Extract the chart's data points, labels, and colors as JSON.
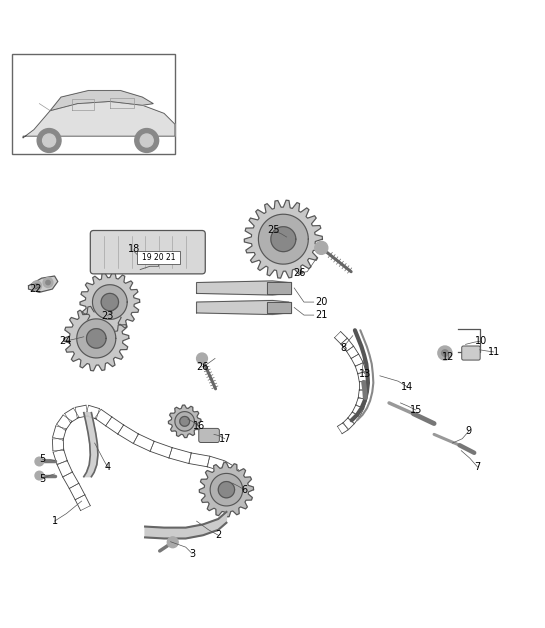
{
  "title": "",
  "bg_color": "#ffffff",
  "fig_width": 5.45,
  "fig_height": 6.28,
  "dpi": 100,
  "text_color": "#000000",
  "text_fontsize": 7,
  "line_color": "#555555"
}
